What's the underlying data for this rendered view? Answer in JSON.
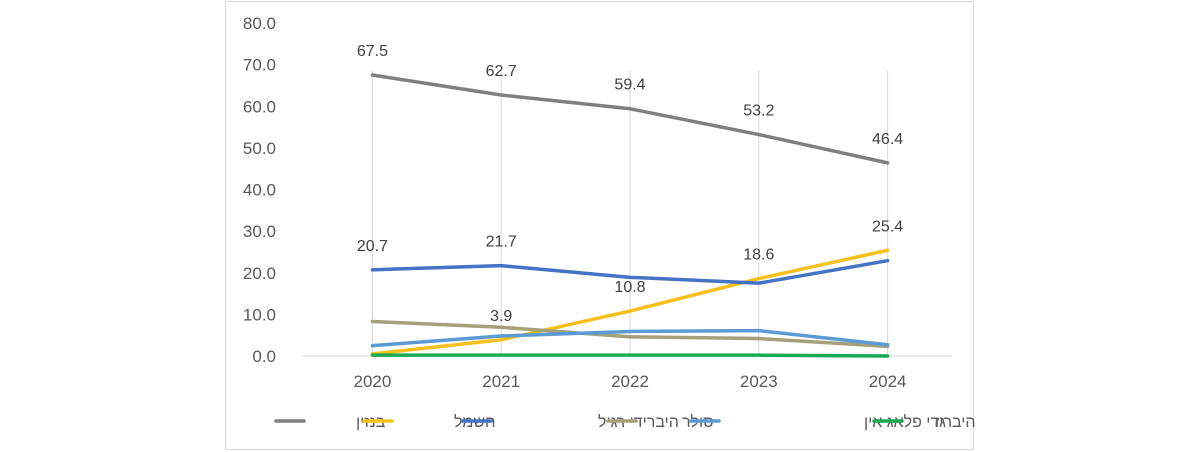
{
  "chart_data": {
    "type": "line",
    "title": "",
    "xlabel": "",
    "ylabel": "",
    "categories": [
      "2020",
      "2021",
      "2022",
      "2023",
      "2024"
    ],
    "ylim": [
      0,
      80
    ],
    "yticks": [
      "0.0",
      "10.0",
      "20.0",
      "30.0",
      "40.0",
      "50.0",
      "60.0",
      "70.0",
      "80.0"
    ],
    "grid": "vertical",
    "legend_position": "bottom",
    "series": [
      {
        "name": "בנזין",
        "color": "#7f7f7f",
        "values": [
          67.5,
          62.7,
          59.4,
          53.2,
          46.4
        ],
        "labels": [
          "67.5",
          "62.7",
          "59.4",
          "53.2",
          "46.4"
        ]
      },
      {
        "name": "חשמל",
        "color": "#f5c01a",
        "values": [
          0.5,
          3.9,
          10.8,
          18.6,
          25.4
        ],
        "labels": [
          null,
          "3.9",
          "10.8",
          "18.6",
          "25.4"
        ]
      },
      {
        "name": "היברידי רגיל",
        "color": "#4472c4",
        "values": [
          20.7,
          21.7,
          18.9,
          17.5,
          22.9
        ],
        "labels": [
          "20.7",
          "21.7",
          null,
          null,
          null
        ]
      },
      {
        "name": "סולר",
        "color": "#a5a07a",
        "values": [
          8.3,
          6.9,
          4.6,
          4.2,
          2.3
        ],
        "labels": [
          null,
          null,
          null,
          null,
          null
        ]
      },
      {
        "name": "היברידי פלאג אין",
        "color": "#5b9bd5",
        "values": [
          2.5,
          4.8,
          5.9,
          6.1,
          2.7
        ],
        "labels": [
          null,
          null,
          null,
          null,
          null
        ]
      },
      {
        "name": "גז",
        "color": "#1aaa55",
        "values": [
          0.2,
          0.2,
          0.2,
          0.2,
          0.0
        ],
        "labels": [
          null,
          null,
          null,
          null,
          null
        ]
      }
    ]
  }
}
